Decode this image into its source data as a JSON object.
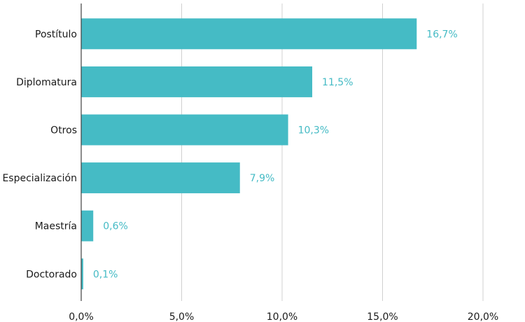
{
  "chart_data": {
    "type": "bar",
    "orientation": "horizontal",
    "categories": [
      "Postítulo",
      "Diplomatura",
      "Otros",
      "Especialización",
      "Maestría",
      "Doctorado"
    ],
    "values": [
      16.7,
      11.5,
      10.3,
      7.9,
      0.6,
      0.1
    ],
    "value_labels": [
      "16,7%",
      "11,5%",
      "10,3%",
      "7,9%",
      "0,6%",
      "0,1%"
    ],
    "xlim": [
      0,
      20
    ],
    "x_ticks": [
      0,
      5,
      10,
      15,
      20
    ],
    "x_tick_labels": [
      "0,0%",
      "5,0%",
      "10,0%",
      "15,0%",
      "20,0%"
    ],
    "grid": "vertical",
    "bar_color": "#45bbc5",
    "label_color": "#45bbc5",
    "grid_color": "#d0d0d0",
    "axis_color": "#404040"
  }
}
